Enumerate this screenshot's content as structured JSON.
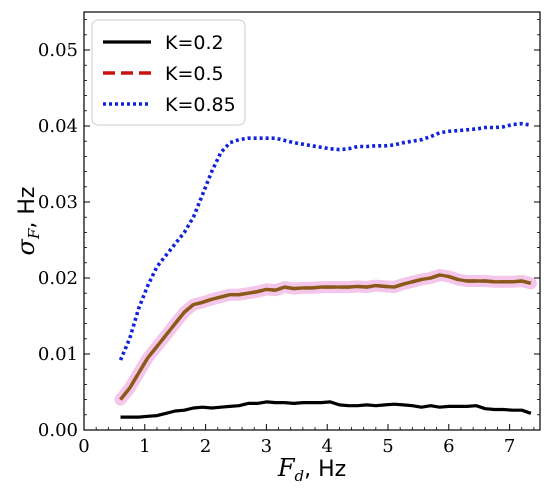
{
  "chart_data": {
    "type": "line",
    "xlabel": {
      "symbol": "F",
      "subscript": "d",
      "unit": ", Hz"
    },
    "ylabel": {
      "symbol": "σ",
      "subscript": "F",
      "unit": ", Hz"
    },
    "xlim": [
      0,
      7.5
    ],
    "ylim": [
      0,
      0.055
    ],
    "x_ticks": [
      "0",
      "1",
      "2",
      "3",
      "4",
      "5",
      "6",
      "7"
    ],
    "y_ticks": [
      "0.00",
      "0.01",
      "0.02",
      "0.03",
      "0.04",
      "0.05"
    ],
    "legend_position": "top-left",
    "grid": false,
    "colors": {
      "K=0.2": "#000000",
      "K=0.5": "#cc1111",
      "K=0.85": "#1122dd",
      "band": "#f3c6ea",
      "overlay": "#8b5a1a"
    },
    "series": [
      {
        "name": "K=0.2",
        "style": "solid",
        "x": [
          0.6,
          0.75,
          0.9,
          1.05,
          1.2,
          1.35,
          1.5,
          1.65,
          1.8,
          1.95,
          2.1,
          2.25,
          2.4,
          2.55,
          2.7,
          2.85,
          3.0,
          3.15,
          3.3,
          3.45,
          3.6,
          3.75,
          3.9,
          4.05,
          4.2,
          4.35,
          4.5,
          4.65,
          4.8,
          4.95,
          5.1,
          5.25,
          5.4,
          5.55,
          5.7,
          5.85,
          6.0,
          6.15,
          6.3,
          6.45,
          6.6,
          6.75,
          6.9,
          7.05,
          7.2,
          7.35
        ],
        "y": [
          0.0017,
          0.0017,
          0.0017,
          0.0018,
          0.0019,
          0.0022,
          0.0025,
          0.0026,
          0.0029,
          0.003,
          0.0029,
          0.003,
          0.0031,
          0.0032,
          0.0035,
          0.0035,
          0.0037,
          0.0036,
          0.0036,
          0.0035,
          0.0036,
          0.0036,
          0.0036,
          0.0037,
          0.0033,
          0.0032,
          0.0032,
          0.0033,
          0.0032,
          0.0033,
          0.0034,
          0.0033,
          0.0032,
          0.003,
          0.0032,
          0.003,
          0.0031,
          0.0031,
          0.0031,
          0.0032,
          0.0028,
          0.0027,
          0.0027,
          0.0026,
          0.0026,
          0.0022
        ]
      },
      {
        "name": "K=0.5",
        "style": "dashed",
        "x": [
          0.6,
          0.75,
          0.9,
          1.05,
          1.2,
          1.35,
          1.5,
          1.65,
          1.8,
          1.95,
          2.1,
          2.25,
          2.4,
          2.55,
          2.7,
          2.85,
          3.0,
          3.15,
          3.3,
          3.45,
          3.6,
          3.75,
          3.9,
          4.05,
          4.2,
          4.35,
          4.5,
          4.65,
          4.8,
          4.95,
          5.1,
          5.25,
          5.4,
          5.55,
          5.7,
          5.85,
          6.0,
          6.15,
          6.3,
          6.45,
          6.6,
          6.75,
          6.9,
          7.05,
          7.2,
          7.35
        ],
        "y": [
          0.004,
          0.0055,
          0.0075,
          0.0095,
          0.011,
          0.0125,
          0.014,
          0.0155,
          0.0165,
          0.0168,
          0.0172,
          0.0175,
          0.0178,
          0.0178,
          0.018,
          0.0182,
          0.0185,
          0.0184,
          0.0188,
          0.0186,
          0.0187,
          0.0187,
          0.0188,
          0.0188,
          0.0188,
          0.0188,
          0.0189,
          0.0188,
          0.019,
          0.0189,
          0.0188,
          0.0192,
          0.0195,
          0.0198,
          0.02,
          0.0204,
          0.0202,
          0.0198,
          0.0196,
          0.0196,
          0.0196,
          0.0195,
          0.0195,
          0.0195,
          0.0196,
          0.0193
        ]
      },
      {
        "name": "K=0.85",
        "style": "dotted",
        "x": [
          0.6,
          0.75,
          0.9,
          1.05,
          1.2,
          1.35,
          1.5,
          1.65,
          1.8,
          1.95,
          2.1,
          2.25,
          2.4,
          2.55,
          2.7,
          2.85,
          3.0,
          3.15,
          3.3,
          3.45,
          3.6,
          3.75,
          3.9,
          4.05,
          4.2,
          4.35,
          4.5,
          4.65,
          4.8,
          4.95,
          5.1,
          5.25,
          5.4,
          5.55,
          5.7,
          5.85,
          6.0,
          6.15,
          6.3,
          6.45,
          6.6,
          6.75,
          6.9,
          7.05,
          7.2,
          7.35
        ],
        "y": [
          0.0092,
          0.012,
          0.016,
          0.019,
          0.0215,
          0.023,
          0.0245,
          0.026,
          0.028,
          0.031,
          0.034,
          0.0365,
          0.0378,
          0.0382,
          0.0384,
          0.0384,
          0.0384,
          0.0384,
          0.0381,
          0.0378,
          0.0376,
          0.0374,
          0.0372,
          0.037,
          0.0369,
          0.037,
          0.0373,
          0.0373,
          0.0374,
          0.0374,
          0.0375,
          0.0378,
          0.038,
          0.0382,
          0.0386,
          0.0391,
          0.0393,
          0.0394,
          0.0395,
          0.0396,
          0.0398,
          0.0398,
          0.0399,
          0.0402,
          0.0403,
          0.0401
        ]
      }
    ]
  }
}
